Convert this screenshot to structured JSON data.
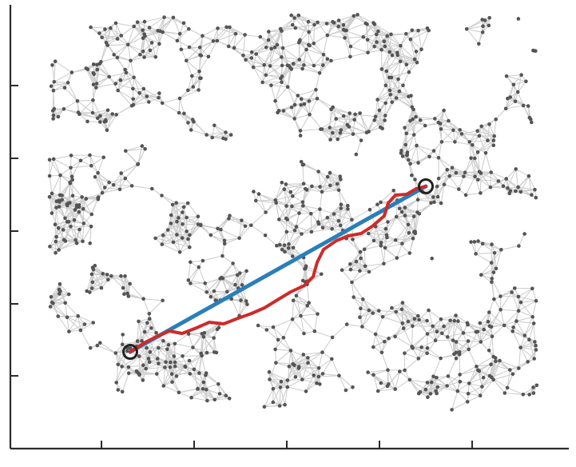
{
  "diagram": {
    "type": "random-geometric-graph",
    "colors": {
      "background": "#ffffff",
      "edge": "#cfcfcf",
      "node": "#545454",
      "axis": "#2b2b2b",
      "straight_path": "#2a7fb8",
      "geodesic_path": "#cf2a2a",
      "endpoint_marker": "#222222"
    },
    "axes": {
      "x_tick_labels": [],
      "y_tick_labels": [],
      "x_tick_count": 5,
      "y_tick_count": 5
    },
    "paths": {
      "straight": {
        "color": "#2a7fb8",
        "shape": "straight-line"
      },
      "geodesic": {
        "color": "#cf2a2a",
        "shape": "graph-shortest-path"
      }
    },
    "endpoints": {
      "marker": "open-circle",
      "count": 2
    }
  }
}
